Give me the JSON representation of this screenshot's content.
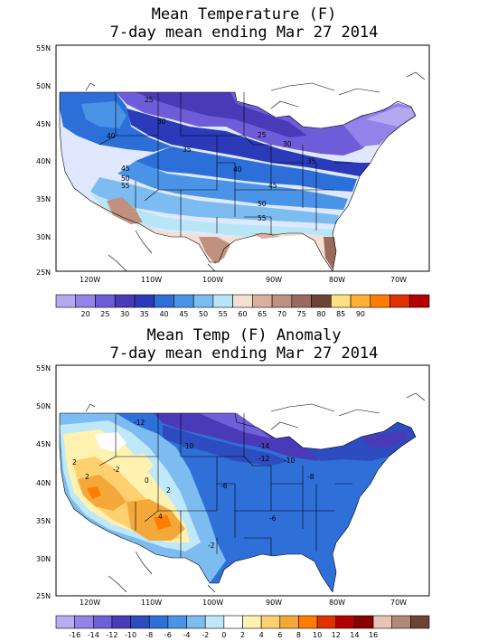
{
  "panels": [
    {
      "title_line1": "Mean Temperature (F)",
      "title_line2": "7-day mean ending Mar 27 2014",
      "lat_labels": [
        "55N",
        "50N",
        "45N",
        "40N",
        "35N",
        "30N",
        "25N"
      ],
      "lon_labels": [
        "120W",
        "110W",
        "100W",
        "90W",
        "80W",
        "70W"
      ],
      "contour_labels": [
        "25",
        "30",
        "35",
        "25",
        "30",
        "35",
        "40",
        "40",
        "45",
        "50",
        "55",
        "50",
        "55",
        "45"
      ],
      "colorbar_labels": [
        "20",
        "25",
        "30",
        "35",
        "40",
        "45",
        "50",
        "55",
        "60",
        "65",
        "70",
        "75",
        "80",
        "85",
        "90"
      ],
      "colorbar_colors": [
        "#b4a8f0",
        "#9383e8",
        "#6f5cd8",
        "#4b3ab8",
        "#2a3ab8",
        "#2d6fd8",
        "#4a94e8",
        "#7cbcf0",
        "#b9e6f6",
        "#f3e0d2",
        "#d8b09c",
        "#c09080",
        "#9b6a5e",
        "#6b4436",
        "#ffe082",
        "#ffb030",
        "#ff7d00",
        "#e03000",
        "#b40000"
      ]
    },
    {
      "title_line1": "Mean Temp (F) Anomaly",
      "title_line2": "7-day mean ending Mar 27 2014",
      "lat_labels": [
        "55N",
        "50N",
        "45N",
        "40N",
        "35N",
        "30N",
        "25N"
      ],
      "lon_labels": [
        "120W",
        "110W",
        "100W",
        "90W",
        "80W",
        "70W"
      ],
      "contour_labels": [
        "-12",
        "-10",
        "-14",
        "-12",
        "-10",
        "-8",
        "-6",
        "-6",
        "-2",
        "2",
        "2",
        "4",
        "-2",
        "0",
        "2"
      ],
      "colorbar_labels": [
        "-16",
        "-14",
        "-12",
        "-10",
        "-8",
        "-6",
        "-4",
        "-2",
        "0",
        "2",
        "4",
        "6",
        "8",
        "10",
        "12",
        "14",
        "16"
      ],
      "colorbar_colors": [
        "#b9acf2",
        "#9383e8",
        "#7060d8",
        "#4b3ab8",
        "#2d4cc0",
        "#2f6fd8",
        "#4a94e8",
        "#7cbcf0",
        "#bfe8f8",
        "#ffffff",
        "#fff2b0",
        "#ffd070",
        "#f5a83a",
        "#ff7d00",
        "#e03000",
        "#b40000",
        "#8a0000",
        "#e8c4b4",
        "#b08878",
        "#6b4436"
      ]
    }
  ]
}
